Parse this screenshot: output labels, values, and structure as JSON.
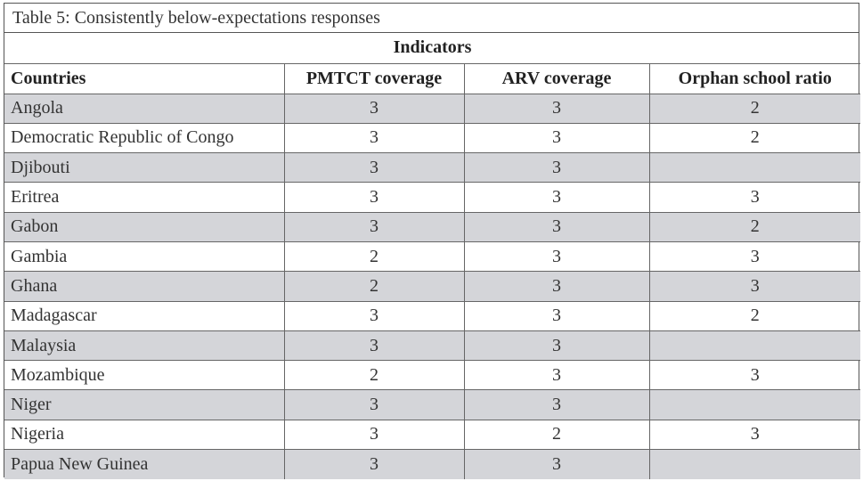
{
  "caption": "Table 5:  Consistently below-expectations responses",
  "group_header": "Indicators",
  "columns": [
    "Countries",
    "PMTCT coverage",
    "ARV coverage",
    "Orphan school ratio"
  ],
  "rows": [
    {
      "country": "Angola",
      "pmtct": "3",
      "arv": "3",
      "orphan": "2"
    },
    {
      "country": "Democratic Republic of Congo",
      "pmtct": "3",
      "arv": "3",
      "orphan": "2"
    },
    {
      "country": "Djibouti",
      "pmtct": "3",
      "arv": "3",
      "orphan": ""
    },
    {
      "country": "Eritrea",
      "pmtct": "3",
      "arv": "3",
      "orphan": "3"
    },
    {
      "country": "Gabon",
      "pmtct": "3",
      "arv": "3",
      "orphan": "2"
    },
    {
      "country": "Gambia",
      "pmtct": "2",
      "arv": "3",
      "orphan": "3"
    },
    {
      "country": "Ghana",
      "pmtct": "2",
      "arv": "3",
      "orphan": "3"
    },
    {
      "country": "Madagascar",
      "pmtct": "3",
      "arv": "3",
      "orphan": "2"
    },
    {
      "country": "Malaysia",
      "pmtct": "3",
      "arv": "3",
      "orphan": ""
    },
    {
      "country": "Mozambique",
      "pmtct": "2",
      "arv": "3",
      "orphan": "3"
    },
    {
      "country": "Niger",
      "pmtct": "3",
      "arv": "3",
      "orphan": ""
    },
    {
      "country": "Nigeria",
      "pmtct": "3",
      "arv": "2",
      "orphan": "3"
    },
    {
      "country": "Papua New Guinea",
      "pmtct": "3",
      "arv": "3",
      "orphan": ""
    }
  ],
  "colors": {
    "shaded_row": "#d4d5d9",
    "border": "#666666"
  }
}
